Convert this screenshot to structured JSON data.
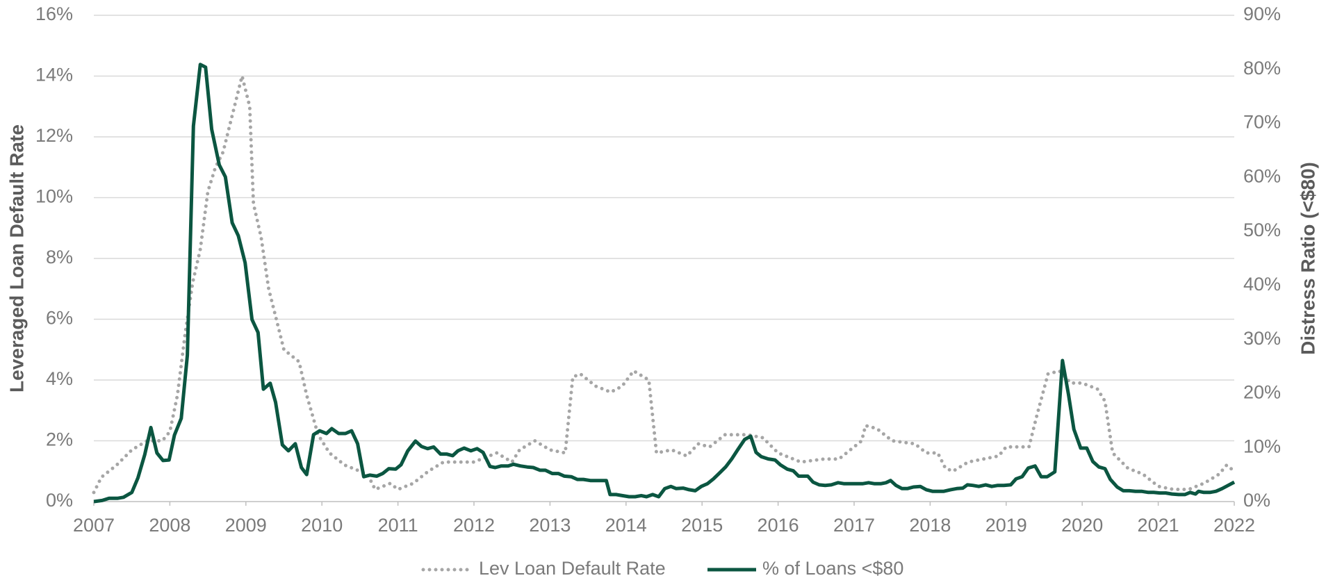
{
  "chart_data": {
    "type": "line",
    "ylabel": "Leveraged Loan Default Rate",
    "y2label": "Distress Ratio (<$80)",
    "xlim": [
      2007,
      2022
    ],
    "xticks": [
      2007,
      2008,
      2009,
      2010,
      2011,
      2012,
      2013,
      2014,
      2015,
      2016,
      2017,
      2018,
      2019,
      2020,
      2021,
      2022
    ],
    "ylim": [
      0,
      16
    ],
    "yticks": [
      {
        "value": 0,
        "label": "0%"
      },
      {
        "value": 2,
        "label": "2%"
      },
      {
        "value": 4,
        "label": "4%"
      },
      {
        "value": 6,
        "label": "6%"
      },
      {
        "value": 8,
        "label": "8%"
      },
      {
        "value": 10,
        "label": "10%"
      },
      {
        "value": 12,
        "label": "12%"
      },
      {
        "value": 14,
        "label": "14%"
      },
      {
        "value": 16,
        "label": "16%"
      }
    ],
    "y2lim": [
      0,
      90
    ],
    "y2ticks": [
      {
        "value": 0,
        "label": "0%"
      },
      {
        "value": 10,
        "label": "10%"
      },
      {
        "value": 20,
        "label": "20%"
      },
      {
        "value": 30,
        "label": "30%"
      },
      {
        "value": 40,
        "label": "40%"
      },
      {
        "value": 50,
        "label": "50%"
      },
      {
        "value": 60,
        "label": "60%"
      },
      {
        "value": 70,
        "label": "70%"
      },
      {
        "value": 80,
        "label": "80%"
      },
      {
        "value": 90,
        "label": "90%"
      }
    ],
    "grid": true,
    "legend": "bottom",
    "series": [
      {
        "name": "Lev Loan Default Rate",
        "color": "#a6a6a6",
        "style": "dotted",
        "axis": "y",
        "x": [
          2007.0,
          2007.1,
          2007.3,
          2007.5,
          2007.7,
          2007.9,
          2008.0,
          2008.1,
          2008.2,
          2008.3,
          2008.4,
          2008.5,
          2008.6,
          2008.7,
          2008.8,
          2008.95,
          2009.05,
          2009.1,
          2009.2,
          2009.3,
          2009.4,
          2009.5,
          2009.7,
          2009.8,
          2009.95,
          2010.1,
          2010.3,
          2010.5,
          2010.6,
          2010.7,
          2010.9,
          2011.0,
          2011.2,
          2011.4,
          2011.6,
          2011.8,
          2012.0,
          2012.3,
          2012.5,
          2012.6,
          2012.8,
          2013.0,
          2013.2,
          2013.3,
          2013.4,
          2013.6,
          2013.8,
          2013.95,
          2014.1,
          2014.3,
          2014.4,
          2014.6,
          2014.8,
          2014.95,
          2015.1,
          2015.3,
          2015.6,
          2015.8,
          2016.0,
          2016.2,
          2016.3,
          2016.6,
          2016.8,
          2016.95,
          2017.1,
          2017.15,
          2017.3,
          2017.5,
          2017.8,
          2017.95,
          2018.1,
          2018.2,
          2018.3,
          2018.5,
          2018.7,
          2018.9,
          2019.0,
          2019.3,
          2019.4,
          2019.55,
          2019.7,
          2019.85,
          2020.0,
          2020.2,
          2020.3,
          2020.4,
          2020.6,
          2020.8,
          2021.0,
          2021.2,
          2021.4,
          2021.6,
          2021.8,
          2021.9,
          2022.0
        ],
        "values": [
          0.3,
          0.8,
          1.2,
          1.7,
          2.0,
          2.0,
          2.3,
          3.5,
          5.5,
          7.2,
          8.3,
          10.2,
          11.0,
          11.5,
          12.5,
          14.0,
          13.0,
          9.8,
          8.7,
          7.0,
          6.0,
          5.0,
          4.6,
          3.5,
          2.2,
          1.6,
          1.2,
          1.0,
          0.9,
          0.4,
          0.6,
          0.4,
          0.6,
          1.0,
          1.3,
          1.3,
          1.3,
          1.6,
          1.3,
          1.7,
          2.0,
          1.7,
          1.6,
          4.1,
          4.2,
          3.8,
          3.6,
          3.8,
          4.3,
          4.0,
          1.6,
          1.7,
          1.5,
          1.9,
          1.8,
          2.2,
          2.2,
          2.1,
          1.6,
          1.4,
          1.3,
          1.4,
          1.4,
          1.7,
          2.0,
          2.5,
          2.4,
          2.0,
          1.9,
          1.6,
          1.6,
          1.1,
          1.0,
          1.3,
          1.4,
          1.5,
          1.8,
          1.8,
          2.8,
          4.2,
          4.3,
          3.9,
          3.9,
          3.7,
          3.3,
          1.6,
          1.1,
          0.9,
          0.5,
          0.4,
          0.4,
          0.6,
          0.9,
          1.2,
          1.0
        ]
      },
      {
        "name": "% of Loans <$80",
        "color": "#0b5641",
        "style": "solid",
        "axis": "y2",
        "x": [
          2007.0,
          2007.11,
          2007.2,
          2007.31,
          2007.39,
          2007.5,
          2007.58,
          2007.67,
          2007.75,
          2007.83,
          2007.91,
          2007.99,
          2008.06,
          2008.15,
          2008.23,
          2008.31,
          2008.4,
          2008.47,
          2008.55,
          2008.65,
          2008.73,
          2008.82,
          2008.9,
          2008.99,
          2009.08,
          2009.16,
          2009.23,
          2009.32,
          2009.39,
          2009.48,
          2009.56,
          2009.65,
          2009.73,
          2009.8,
          2009.89,
          2009.97,
          2010.06,
          2010.13,
          2010.22,
          2010.31,
          2010.39,
          2010.47,
          2010.55,
          2010.63,
          2010.72,
          2010.8,
          2010.88,
          2010.97,
          2011.04,
          2011.13,
          2011.23,
          2011.31,
          2011.39,
          2011.47,
          2011.56,
          2011.64,
          2011.72,
          2011.79,
          2011.87,
          2011.96,
          2012.04,
          2012.12,
          2012.21,
          2012.28,
          2012.36,
          2012.45,
          2012.52,
          2012.61,
          2012.7,
          2012.78,
          2012.87,
          2012.94,
          2013.03,
          2013.11,
          2013.19,
          2013.28,
          2013.36,
          2013.44,
          2013.53,
          2013.6,
          2013.74,
          2013.79,
          2013.87,
          2013.95,
          2014.04,
          2014.12,
          2014.2,
          2014.27,
          2014.35,
          2014.43,
          2014.51,
          2014.59,
          2014.66,
          2014.75,
          2014.83,
          2014.91,
          2014.99,
          2015.07,
          2015.15,
          2015.23,
          2015.31,
          2015.39,
          2015.47,
          2015.56,
          2015.64,
          2015.71,
          2015.78,
          2015.87,
          2015.96,
          2016.03,
          2016.12,
          2016.2,
          2016.27,
          2016.39,
          2016.46,
          2016.54,
          2016.62,
          2016.7,
          2016.79,
          2016.87,
          2016.94,
          2017.03,
          2017.11,
          2017.19,
          2017.27,
          2017.35,
          2017.42,
          2017.48,
          2017.55,
          2017.63,
          2017.7,
          2017.78,
          2017.87,
          2017.95,
          2018.03,
          2018.11,
          2018.18,
          2018.27,
          2018.35,
          2018.43,
          2018.49,
          2018.56,
          2018.64,
          2018.73,
          2018.81,
          2018.89,
          2018.97,
          2019.06,
          2019.13,
          2019.21,
          2019.29,
          2019.38,
          2019.46,
          2019.54,
          2019.64,
          2019.74,
          2019.82,
          2019.89,
          2019.98,
          2020.06,
          2020.14,
          2020.22,
          2020.3,
          2020.37,
          2020.46,
          2020.54,
          2020.62,
          2020.7,
          2020.78,
          2020.87,
          2020.94,
          2021.02,
          2021.1,
          2021.18,
          2021.27,
          2021.35,
          2021.42,
          2021.49,
          2021.53,
          2021.6,
          2021.68,
          2021.76,
          2021.84,
          2021.92,
          2022.0
        ],
        "values": [
          0,
          0.2,
          0.6,
          0.6,
          0.8,
          1.7,
          4.4,
          8.7,
          13.7,
          9.0,
          7.6,
          7.7,
          12.3,
          15.4,
          27.1,
          69.5,
          80.9,
          80.4,
          68.9,
          62.3,
          60.1,
          51.6,
          49.2,
          44.2,
          33.7,
          31.3,
          20.8,
          21.9,
          18.4,
          10.5,
          9.4,
          10.7,
          6.3,
          5.0,
          12.4,
          13.1,
          12.6,
          13.5,
          12.6,
          12.6,
          13.1,
          10.7,
          4.6,
          4.9,
          4.7,
          5.2,
          6.1,
          6.0,
          6.8,
          9.4,
          11.2,
          10.2,
          9.8,
          10.1,
          8.8,
          8.8,
          8.5,
          9.4,
          9.9,
          9.4,
          9.8,
          9.1,
          6.5,
          6.3,
          6.6,
          6.6,
          6.9,
          6.6,
          6.4,
          6.3,
          5.8,
          5.8,
          5.2,
          5.2,
          4.7,
          4.6,
          4.1,
          4.1,
          3.9,
          3.9,
          3.9,
          1.3,
          1.3,
          1.1,
          0.9,
          0.9,
          1.1,
          0.9,
          1.3,
          0.9,
          2.4,
          2.8,
          2.4,
          2.5,
          2.2,
          2.0,
          2.8,
          3.3,
          4.2,
          5.3,
          6.4,
          7.9,
          9.6,
          11.5,
          12.1,
          9.1,
          8.3,
          7.9,
          7.7,
          6.8,
          6.0,
          5.7,
          4.7,
          4.7,
          3.6,
          3.1,
          3.0,
          3.1,
          3.5,
          3.3,
          3.3,
          3.3,
          3.3,
          3.5,
          3.3,
          3.3,
          3.5,
          3.9,
          3.0,
          2.4,
          2.4,
          2.7,
          2.8,
          2.2,
          1.9,
          1.9,
          1.9,
          2.2,
          2.4,
          2.5,
          3.1,
          3.0,
          2.8,
          3.1,
          2.8,
          3.0,
          3.0,
          3.1,
          4.2,
          4.6,
          6.2,
          6.6,
          4.6,
          4.6,
          5.5,
          26.1,
          19.8,
          13.4,
          9.9,
          9.9,
          7.4,
          6.4,
          6.1,
          4.1,
          2.7,
          2.0,
          2.0,
          1.9,
          1.9,
          1.7,
          1.7,
          1.6,
          1.6,
          1.4,
          1.3,
          1.3,
          1.7,
          1.4,
          1.9,
          1.7,
          1.7,
          1.9,
          2.4,
          3.0,
          3.6
        ]
      }
    ]
  }
}
